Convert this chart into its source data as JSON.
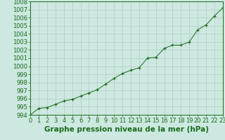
{
  "x_values": [
    0,
    1,
    2,
    3,
    4,
    5,
    6,
    7,
    8,
    9,
    10,
    11,
    12,
    13,
    14,
    15,
    16,
    17,
    18,
    19,
    20,
    21,
    22,
    23
  ],
  "y_values": [
    994.0,
    994.8,
    994.9,
    995.3,
    995.7,
    995.9,
    996.3,
    996.7,
    997.1,
    997.8,
    998.5,
    999.1,
    999.5,
    999.8,
    1001.0,
    1001.1,
    1002.2,
    1002.6,
    1002.6,
    1003.0,
    1004.5,
    1005.1,
    1006.2,
    1007.2
  ],
  "line_color": "#1a6b1a",
  "marker": "+",
  "marker_size": 3,
  "bg_color": "#cce8e0",
  "grid_color": "#b0ccc4",
  "title": "Graphe pression niveau de la mer (hPa)",
  "ylim_min": 994,
  "ylim_max": 1008,
  "ytick_step": 1,
  "xlim_min": 0,
  "xlim_max": 23,
  "title_fontsize": 7.5,
  "tick_fontsize": 6,
  "title_fontweight": "bold",
  "axes_color": "#1a6b1a",
  "spine_color": "#1a6b1a",
  "bottom_label_color": "#1a6b1a"
}
